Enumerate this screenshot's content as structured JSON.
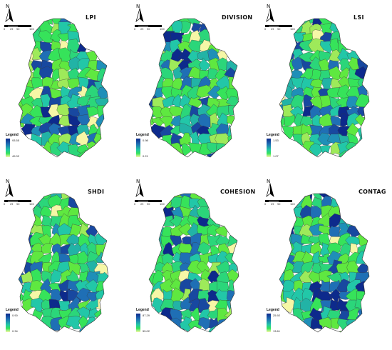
{
  "north_label": "N",
  "scale_labels": [
    "0",
    "25",
    "50",
    "100"
  ],
  "legend_title": "Legend",
  "panels": [
    {
      "title": "LPI",
      "legend_max": "93.55",
      "legend_min": "49.02"
    },
    {
      "title": "DIVISION",
      "legend_max": "0.98",
      "legend_min": "0.21"
    },
    {
      "title": "LSI",
      "legend_max": "1.53",
      "legend_min": "1.07"
    },
    {
      "title": "SHDI",
      "legend_max": "0.90",
      "legend_min": "0.34"
    },
    {
      "title": "COHESION",
      "legend_max": "87.29",
      "legend_min": "55.02"
    },
    {
      "title": "CONTAG",
      "legend_max": "25.92",
      "legend_min": "13.61"
    }
  ],
  "colors": {
    "ramp_high": "#0d2a8c",
    "ramp_mid_blue": "#1f6fb5",
    "ramp_teal": "#22c7a8",
    "ramp_green": "#36e35a",
    "ramp_low": "#f6f7a6",
    "border": "#3a3a3a"
  }
}
